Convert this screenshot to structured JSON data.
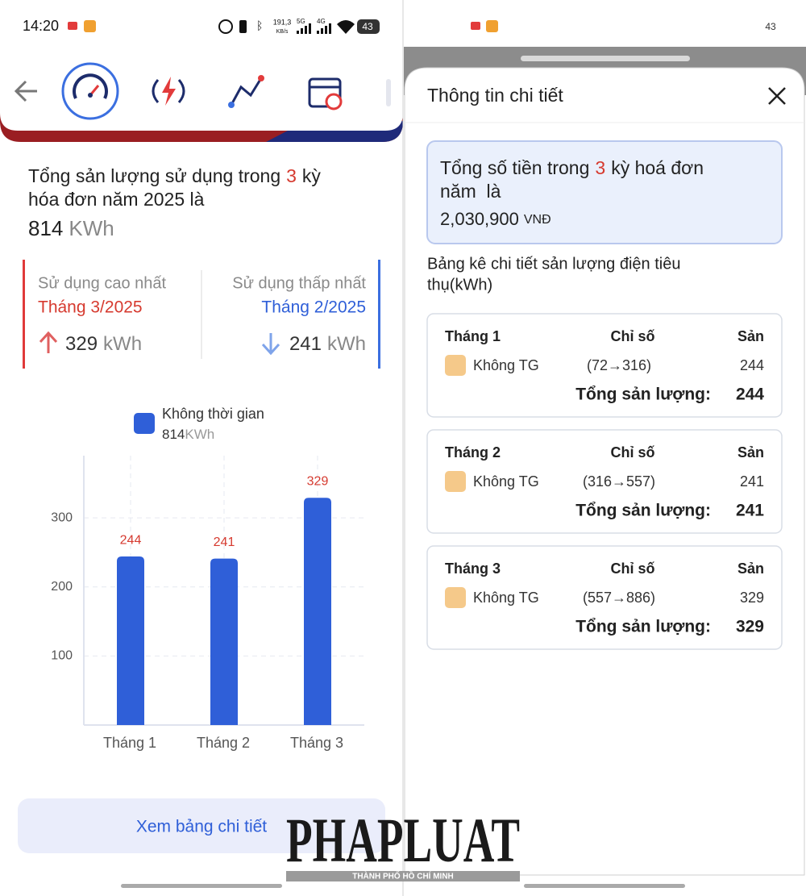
{
  "status_bar": {
    "time": "14:20",
    "speed": "191,3",
    "speed_unit": "KB/s",
    "net1": "5G",
    "net2": "4G",
    "battery": "43"
  },
  "status_bar_right": {
    "battery": "43"
  },
  "summary": {
    "line1_before": "Tổng sản lượng sử dụng trong",
    "count": 3,
    "line1_after": "kỳ",
    "line2": "hóa đơn năm 2025 là",
    "total": 814,
    "unit": "KWh"
  },
  "highest": {
    "label": "Sử dụng cao nhất",
    "month": "Tháng 3/2025",
    "value": 329,
    "unit": "kWh"
  },
  "lowest": {
    "label": "Sử dụng thấp nhất",
    "month": "Tháng 2/2025",
    "value": 241,
    "unit": "kWh"
  },
  "chart_data": {
    "type": "bar",
    "legend_total": 814,
    "legend_unit": "KWh",
    "categories": [
      "Tháng 1",
      "Tháng 2",
      "Tháng 3"
    ],
    "series": [
      {
        "name": "Không thời gian",
        "color": "#2f5fd8",
        "values": [
          244,
          241,
          329
        ]
      }
    ],
    "value_label_color": "#d63a2f",
    "ylim": [
      0,
      390
    ],
    "yticks": [
      100,
      200,
      300
    ],
    "grid": true
  },
  "button": "Xem bảng chi tiết",
  "detail": {
    "title": "Thông tin chi tiết",
    "total_box": {
      "line1_before": "Tổng số tiền trong",
      "count": 3,
      "line1_after": "kỳ hoá đơn",
      "line2": "năm  là",
      "amount": "2,030,900",
      "currency": "VNĐ"
    },
    "table_title_line1": "Bảng kê chi tiết sản lượng điện tiêu",
    "table_title_line2": "thụ(kWh)",
    "cards": [
      {
        "month": "Tháng 1",
        "col_reading": "Chỉ số",
        "col_output": "Sản",
        "rate": "Không TG",
        "reading": "(72→316)",
        "output": 244,
        "total_label": "Tổng sản lượng:",
        "total": 244
      },
      {
        "month": "Tháng 2",
        "col_reading": "Chỉ số",
        "col_output": "Sản",
        "rate": "Không TG",
        "reading": "(316→557)",
        "output": 241,
        "total_label": "Tổng sản lượng:",
        "total": 241
      },
      {
        "month": "Tháng 3",
        "col_reading": "Chỉ số",
        "col_output": "Sản",
        "rate": "Không TG",
        "reading": "(557→886)",
        "output": 329,
        "total_label": "Tổng sản lượng:",
        "total": 329
      }
    ]
  },
  "watermark": {
    "brand": "PHAPLUAT",
    "subtitle": "THÀNH PHỐ HỒ CHÍ MINH"
  }
}
